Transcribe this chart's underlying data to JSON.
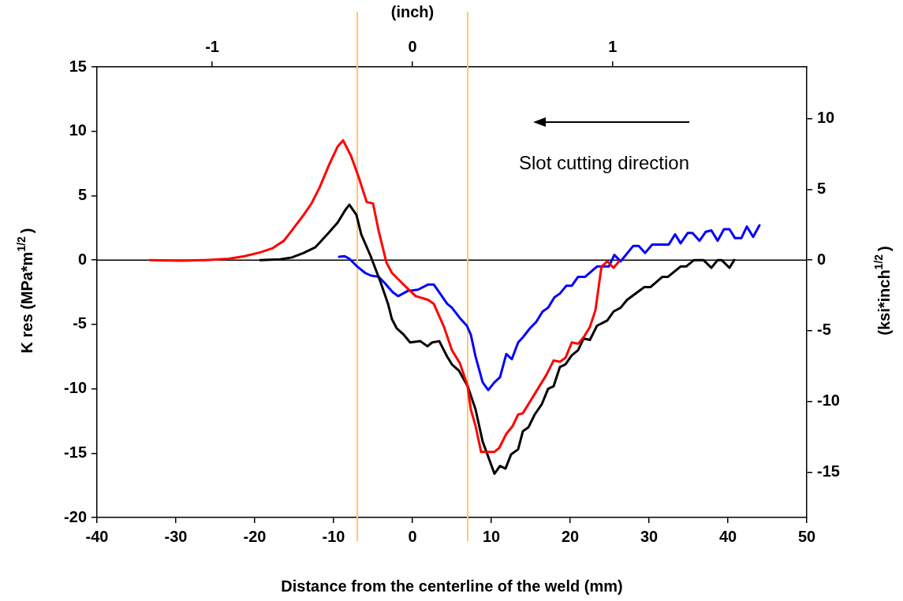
{
  "chart_data": {
    "type": "line",
    "xlabel": "Distance from the centerline of the weld (mm)",
    "ylabel": "K res (MPa*m$^{1/2}$)",
    "y2label": "(ksi*inch$^{1/2}$)",
    "x2label": "(inch)",
    "xlim": [
      -40,
      50
    ],
    "xticks": [
      -40,
      -30,
      -20,
      -10,
      0,
      10,
      20,
      30,
      40,
      50
    ],
    "ylim": [
      -20,
      15
    ],
    "yticks": [
      -20,
      -15,
      -10,
      -5,
      0,
      5,
      10,
      15
    ],
    "y2lim": [
      -18.2,
      13.65
    ],
    "y2ticks": [
      -15,
      -10,
      -5,
      0,
      5,
      10
    ],
    "x2lim": [
      -1.575,
      1.969
    ],
    "x2ticks": [
      -1,
      0,
      1
    ],
    "grid": false,
    "legend": false,
    "marker": "none",
    "line_style": "solid",
    "annotations": [
      "Slot cutting direction"
    ],
    "ref_lines": [
      {
        "axis": "y",
        "value": 0,
        "label": null,
        "color": "#000000"
      },
      {
        "axis": "x",
        "value": -7,
        "label": null,
        "color": "#ffc870"
      },
      {
        "axis": "x",
        "value": 7,
        "label": null,
        "color": "#ffc870"
      }
    ],
    "series": [
      {
        "color": "#ff0000",
        "x": [
          -33.3,
          -29.3,
          -26.3,
          -23.3,
          -21.3,
          -19.3,
          -17.8,
          -16.3,
          -15.3,
          -13.8,
          -12.8,
          -11.8,
          -10.5,
          -9.5,
          -8.8,
          -7.8,
          -6.8,
          -5.8,
          -5.0,
          -4.3,
          -3.3,
          -2.6,
          -1.3,
          0.4,
          2.0,
          2.7,
          4.0,
          5.0,
          6.0,
          7.0,
          7.4,
          8.0,
          8.7,
          10.4,
          11.0,
          11.9,
          12.7,
          13.4,
          14.0,
          15.5,
          17.0,
          17.9,
          18.7,
          19.4,
          20.2,
          21.0,
          21.7,
          22.5,
          23.2,
          23.9,
          24.0,
          24.7,
          25.5,
          26.2
        ],
        "values": [
          0,
          -0.05,
          0,
          0.1,
          0.3,
          0.6,
          0.9,
          1.5,
          2.3,
          3.5,
          4.4,
          5.6,
          7.5,
          8.8,
          9.3,
          8.1,
          6.4,
          4.5,
          4.4,
          2.3,
          -0.2,
          -1.0,
          -1.8,
          -2.8,
          -3.1,
          -3.4,
          -5.2,
          -7.0,
          -8.0,
          -9.8,
          -11.6,
          -12.9,
          -14.9,
          -14.9,
          -14.6,
          -13.5,
          -12.9,
          -12.0,
          -11.9,
          -10.4,
          -8.9,
          -7.8,
          -7.9,
          -7.6,
          -6.4,
          -6.5,
          -6.0,
          -5.2,
          -3.9,
          -0.8,
          -0.5,
          -0.1,
          -0.6,
          -0.1
        ]
      },
      {
        "color": "#000000",
        "x": [
          -19.3,
          -16.8,
          -15.3,
          -13.8,
          -12.3,
          -10.8,
          -9.5,
          -8.5,
          -8.0,
          -7.1,
          -6.5,
          -5.3,
          -4.0,
          -3.1,
          -2.6,
          -2.0,
          -1.1,
          -0.3,
          1.0,
          1.9,
          2.5,
          3.4,
          4.4,
          5.0,
          5.9,
          7.0,
          8.0,
          8.9,
          10.4,
          11.1,
          11.8,
          12.5,
          13.4,
          14.0,
          14.7,
          15.5,
          16.4,
          17.2,
          17.9,
          18.7,
          19.4,
          20.2,
          21.0,
          21.7,
          22.5,
          23.4,
          24.7,
          25.5,
          26.4,
          27.2,
          29.4,
          30.2,
          31.7,
          32.4,
          34.0,
          34.7,
          35.7,
          36.9,
          37.9,
          38.7,
          39.2,
          40.2,
          40.8
        ],
        "values": [
          0,
          0.05,
          0.2,
          0.55,
          1.0,
          2.0,
          2.9,
          3.9,
          4.3,
          3.5,
          2.0,
          0.3,
          -1.8,
          -3.4,
          -4.6,
          -5.3,
          -5.8,
          -6.4,
          -6.3,
          -6.7,
          -6.4,
          -6.3,
          -7.5,
          -8.1,
          -8.6,
          -9.8,
          -11.6,
          -14.1,
          -16.6,
          -16.0,
          -16.2,
          -15.1,
          -14.7,
          -13.3,
          -13.0,
          -12.0,
          -11.2,
          -10.0,
          -9.8,
          -8.3,
          -8.1,
          -7.4,
          -7.0,
          -6.1,
          -6.2,
          -5.1,
          -4.7,
          -4.0,
          -3.7,
          -3.1,
          -2.1,
          -2.1,
          -1.3,
          -1.3,
          -0.5,
          -0.5,
          0,
          0,
          -0.6,
          0,
          0,
          -0.6,
          0
        ]
      },
      {
        "color": "#0000ff",
        "x": [
          -9.3,
          -8.6,
          -8.0,
          -7.0,
          -6.0,
          -5.3,
          -4.3,
          -3.5,
          -2.5,
          -1.8,
          -0.6,
          0.7,
          2.0,
          2.7,
          4.4,
          5.0,
          6.0,
          6.9,
          7.4,
          8.0,
          8.9,
          9.6,
          10.4,
          11.1,
          11.9,
          12.6,
          13.4,
          14.0,
          14.9,
          15.7,
          16.5,
          17.2,
          18.0,
          18.7,
          19.5,
          20.2,
          21.0,
          21.9,
          23.4,
          24.9,
          25.6,
          26.4,
          28.0,
          28.7,
          29.5,
          30.4,
          32.5,
          33.3,
          34.0,
          34.9,
          35.5,
          36.4,
          37.2,
          37.9,
          38.7,
          39.5,
          40.2,
          40.9,
          41.7,
          42.4,
          43.2,
          44.0
        ],
        "values": [
          0.25,
          0.3,
          0.1,
          -0.5,
          -1.0,
          -1.2,
          -1.3,
          -1.8,
          -2.5,
          -2.8,
          -2.4,
          -2.3,
          -1.9,
          -1.9,
          -3.4,
          -3.7,
          -4.5,
          -5.1,
          -5.8,
          -7.5,
          -9.5,
          -10.1,
          -9.5,
          -9.1,
          -7.3,
          -7.7,
          -6.4,
          -6.0,
          -5.3,
          -4.8,
          -4.0,
          -3.7,
          -2.9,
          -2.6,
          -2.0,
          -2.0,
          -1.3,
          -1.3,
          -0.5,
          -0.5,
          0.4,
          -0.1,
          1.1,
          1.1,
          0.55,
          1.2,
          1.2,
          2.0,
          1.3,
          2.1,
          2.1,
          1.5,
          2.2,
          2.3,
          1.5,
          2.4,
          2.4,
          1.7,
          1.7,
          2.6,
          1.8,
          2.7
        ]
      }
    ]
  }
}
